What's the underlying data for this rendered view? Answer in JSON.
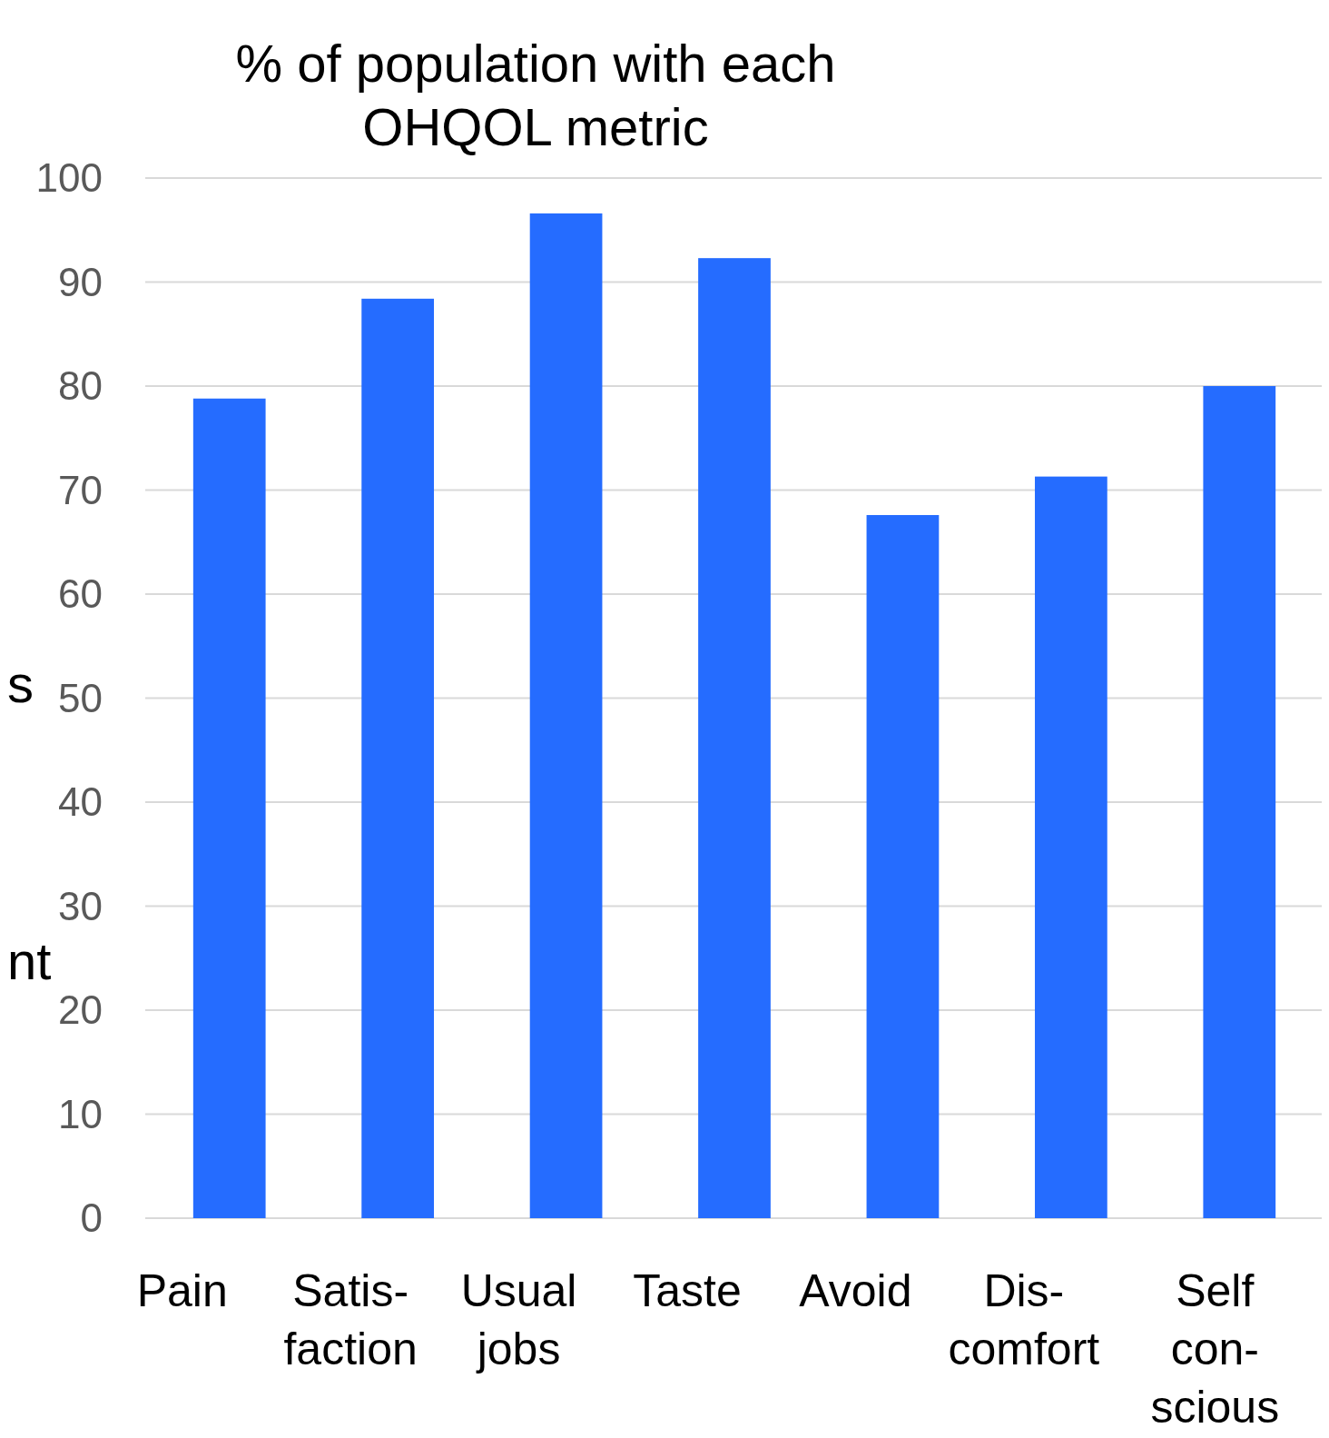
{
  "chart_data": {
    "type": "bar",
    "title": "% of population with each\nOHQOL metric",
    "categories": [
      "Pain",
      "Satis-\nfaction",
      "Usual\njobs",
      "Taste",
      "Avoid",
      "Dis-\ncomfort",
      "Self\ncon-\nscious"
    ],
    "values": [
      78.8,
      88.4,
      96.6,
      92.3,
      67.6,
      71.3,
      80.0
    ],
    "color": "#256cff",
    "ylim": [
      0,
      100
    ],
    "yticks": [
      0,
      10,
      20,
      30,
      40,
      50,
      60,
      70,
      80,
      90,
      100
    ],
    "grid": "y",
    "annotations": [
      "s",
      "nt"
    ]
  }
}
